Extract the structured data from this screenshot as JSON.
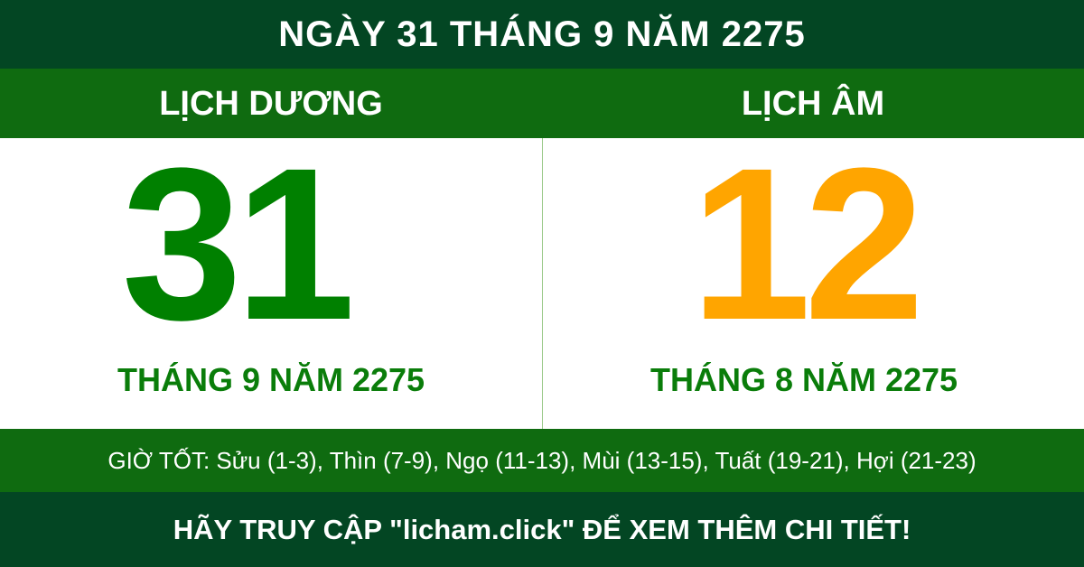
{
  "header": {
    "title": "NGÀY 31 THÁNG 9 NĂM 2275"
  },
  "solar": {
    "label": "LỊCH DƯƠNG",
    "day": "31",
    "month_year": "THÁNG 9 NĂM 2275",
    "color": "#008000"
  },
  "lunar": {
    "label": "LỊCH ÂM",
    "day": "12",
    "month_year": "THÁNG 8 NĂM 2275",
    "color": "#FFA500"
  },
  "good_hours": "GIỜ TỐT: Sửu (1-3), Thìn (7-9), Ngọ (11-13), Mùi (13-15), Tuất (19-21), Hợi (21-23)",
  "footer": {
    "cta": "HÃY TRUY CẬP \"licham.click\" ĐỂ XEM THÊM CHI TIẾT!"
  },
  "colors": {
    "dark_green": "#034623",
    "green_band": "#0F6B10"
  }
}
